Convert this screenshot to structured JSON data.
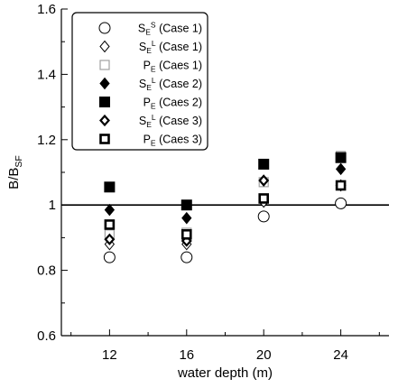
{
  "chart_data": {
    "type": "scatter",
    "xlabel": "water depth (m)",
    "ylabel": {
      "base": "B/B",
      "sub": "SF"
    },
    "x_ticks": [
      12,
      16,
      20,
      24
    ],
    "xlim": [
      9.5,
      26.5
    ],
    "ylim": [
      0.6,
      1.6
    ],
    "y_ticks": [
      0.6,
      0.8,
      1,
      1.2,
      1.4,
      1.6
    ],
    "y_tick_labels": [
      "0.6",
      "0.8",
      "1",
      "1.2",
      "1.4",
      "1.6"
    ],
    "y_minor_step": 0.1,
    "reference_line": 1.0,
    "grid": false,
    "legend_position": "top-left",
    "series": [
      {
        "name": "S_E^S (Case 1)",
        "label": {
          "base": "S",
          "sub": "E",
          "sup": "S",
          "suffix": " (Case 1)"
        },
        "marker": "circle-open",
        "color": "#000000",
        "x": [
          12,
          16,
          20,
          24
        ],
        "y": [
          0.84,
          0.84,
          0.965,
          1.005
        ]
      },
      {
        "name": "S_E^L (Case 1)",
        "label": {
          "base": "S",
          "sub": "E",
          "sup": "L",
          "suffix": " (Case 1)"
        },
        "marker": "diamond-open",
        "color": "#000000",
        "x": [
          12,
          16,
          20,
          24
        ],
        "y": [
          0.88,
          0.88,
          1.01,
          1.06
        ]
      },
      {
        "name": "P_E (Caes 1)",
        "label": {
          "base": "P",
          "sub": "E",
          "sup": "",
          "suffix": " (Caes 1)"
        },
        "marker": "square-open",
        "color": "#a0a0a0",
        "x": [
          12,
          16,
          20,
          24
        ],
        "y": [
          0.91,
          0.915,
          1.07,
          1.15
        ]
      },
      {
        "name": "S_E^L (Case 2)",
        "label": {
          "base": "S",
          "sub": "E",
          "sup": "L",
          "suffix": " (Case 2)"
        },
        "marker": "diamond-filled",
        "color": "#000000",
        "x": [
          12,
          16,
          20,
          24
        ],
        "y": [
          0.985,
          0.96,
          1.075,
          1.11
        ]
      },
      {
        "name": "P_E (Caes 2)",
        "label": {
          "base": "P",
          "sub": "E",
          "sup": "",
          "suffix": " (Caes 2)"
        },
        "marker": "square-filled",
        "color": "#000000",
        "x": [
          12,
          16,
          20,
          24
        ],
        "y": [
          1.055,
          1.0,
          1.125,
          1.145
        ]
      },
      {
        "name": "S_E^L (Case 3)",
        "label": {
          "base": "S",
          "sub": "E",
          "sup": "L",
          "suffix": " (Case 3)"
        },
        "marker": "diamond-bold",
        "color": "#000000",
        "x": [
          12,
          16,
          20,
          24
        ],
        "y": [
          0.895,
          0.89,
          1.075,
          1.06
        ]
      },
      {
        "name": "P_E (Caes 3)",
        "label": {
          "base": "P",
          "sub": "E",
          "sup": "",
          "suffix": " (Caes 3)"
        },
        "marker": "square-bold",
        "color": "#000000",
        "x": [
          12,
          16,
          20,
          24
        ],
        "y": [
          0.94,
          0.91,
          1.02,
          1.06
        ]
      }
    ]
  }
}
